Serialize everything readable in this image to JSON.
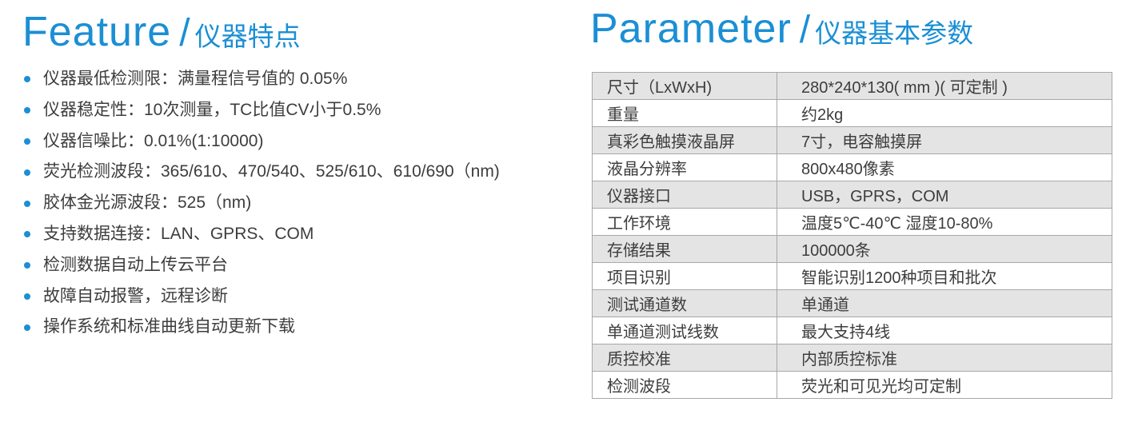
{
  "feature": {
    "title_en": "Feature",
    "separator": "/",
    "title_zh": "仪器特点",
    "accent_color": "#1b8fd4",
    "items": [
      "仪器最低检测限：满量程信号值的 0.05%",
      "仪器稳定性：10次测量，TC比值CV小于0.5%",
      "仪器信噪比：0.01%(1:10000)",
      "荧光检测波段：365/610、470/540、525/610、610/690（nm)",
      "胶体金光源波段：525（nm)",
      "支持数据连接：LAN、GPRS、COM",
      "检测数据自动上传云平台",
      "故障自动报警，远程诊断",
      "操作系统和标准曲线自动更新下载"
    ]
  },
  "parameter": {
    "title_en": "Parameter",
    "separator": "/",
    "title_zh": "仪器基本参数",
    "rows": [
      {
        "key": "尺寸（LxWxH)",
        "value": "280*240*130( mm )( 可定制 )"
      },
      {
        "key": "重量",
        "value": "约2kg"
      },
      {
        "key": "真彩色触摸液晶屏",
        "value": "7寸，电容触摸屏"
      },
      {
        "key": "液晶分辨率",
        "value": "800x480像素"
      },
      {
        "key": "仪器接口",
        "value": "USB，GPRS，COM"
      },
      {
        "key": "工作环境",
        "value": "温度5℃-40℃  湿度10-80%"
      },
      {
        "key": "存储结果",
        "value": "100000条"
      },
      {
        "key": "项目识别",
        "value": "智能识别1200种项目和批次"
      },
      {
        "key": "测试通道数",
        "value": "单通道"
      },
      {
        "key": "单通道测试线数",
        "value": "最大支持4线"
      },
      {
        "key": "质控校准",
        "value": "内部质控标准"
      },
      {
        "key": "检测波段",
        "value": "荧光和可见光均可定制"
      }
    ]
  }
}
